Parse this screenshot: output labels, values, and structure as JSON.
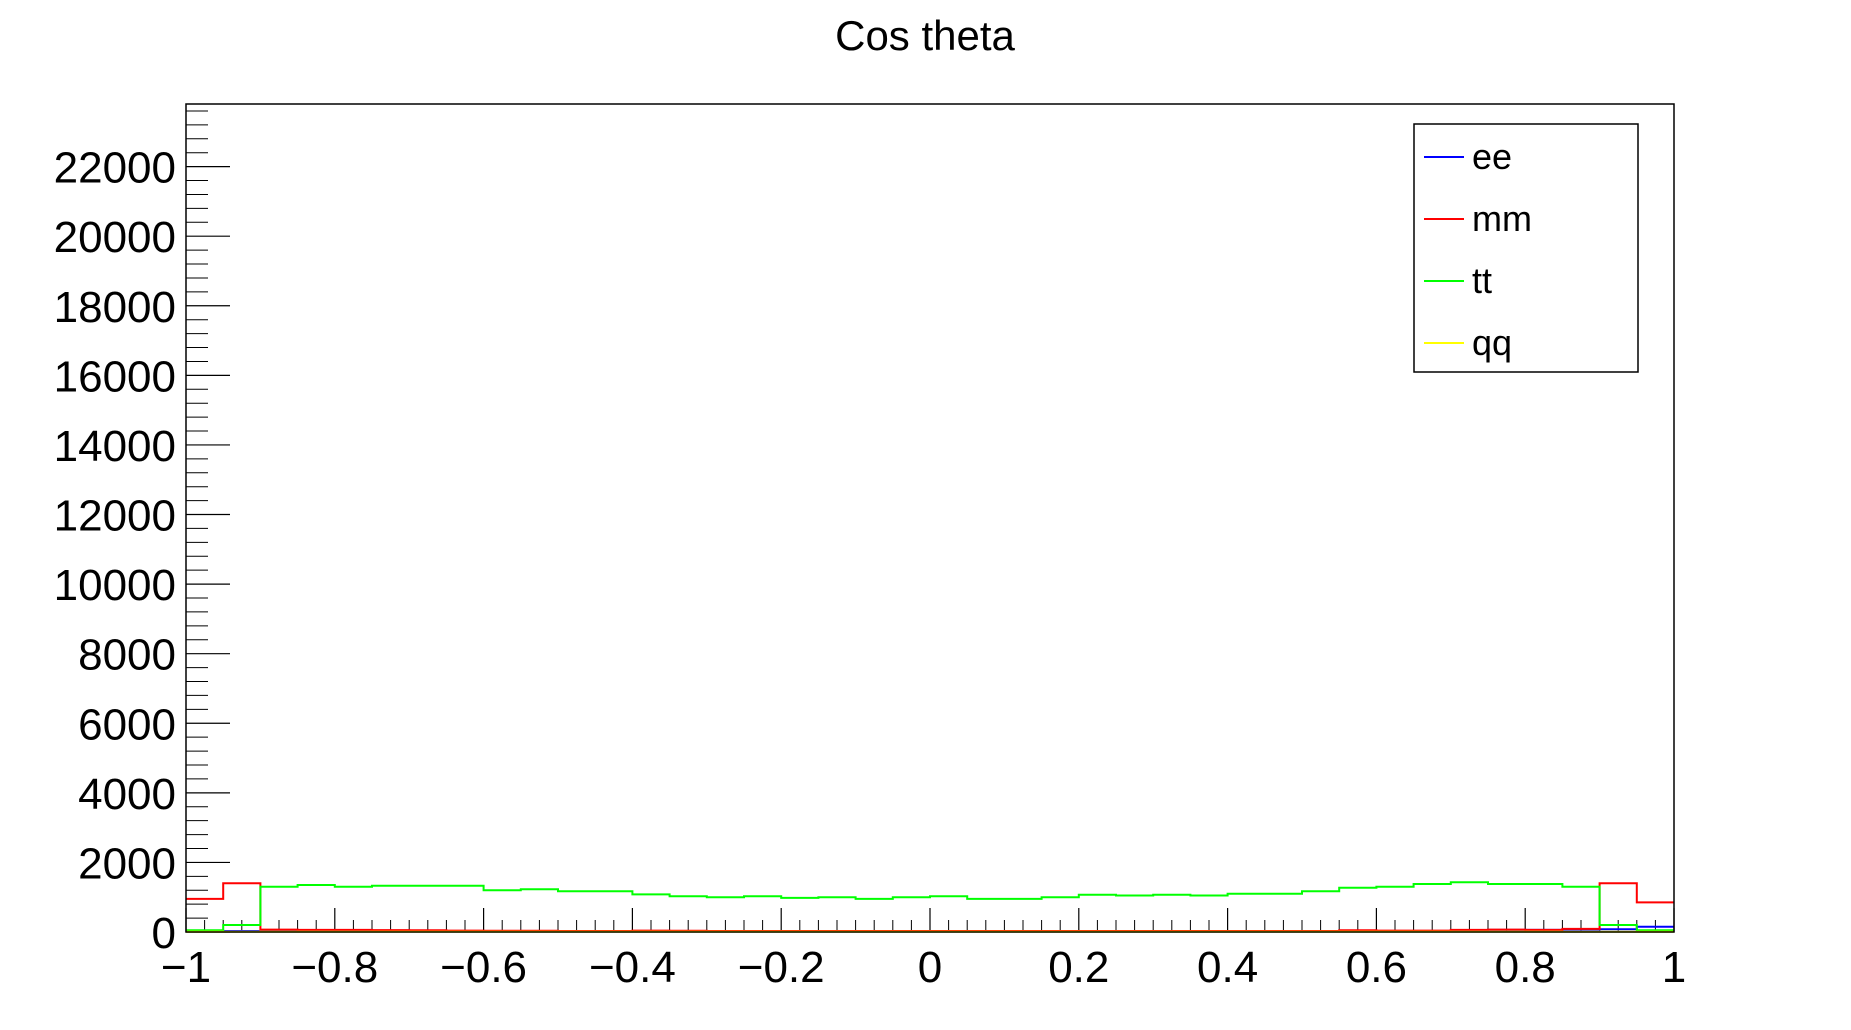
{
  "chart_data": {
    "type": "step-histogram",
    "title": "Cos theta",
    "xlabel": "",
    "ylabel": "",
    "xlim": [
      -1,
      1
    ],
    "ylim": [
      0,
      23800
    ],
    "grid": false,
    "legend_position": "top-right",
    "x_ticks": [
      {
        "value": -1,
        "label": "−1"
      },
      {
        "value": -0.8,
        "label": "−0.8"
      },
      {
        "value": -0.6,
        "label": "−0.6"
      },
      {
        "value": -0.4,
        "label": "−0.4"
      },
      {
        "value": -0.2,
        "label": "−0.2"
      },
      {
        "value": 0,
        "label": "0"
      },
      {
        "value": 0.2,
        "label": "0.2"
      },
      {
        "value": 0.4,
        "label": "0.4"
      },
      {
        "value": 0.6,
        "label": "0.6"
      },
      {
        "value": 0.8,
        "label": "0.8"
      },
      {
        "value": 1,
        "label": "1"
      }
    ],
    "y_ticks": [
      {
        "value": 0,
        "label": "0"
      },
      {
        "value": 2000,
        "label": "2000"
      },
      {
        "value": 4000,
        "label": "4000"
      },
      {
        "value": 6000,
        "label": "6000"
      },
      {
        "value": 8000,
        "label": "8000"
      },
      {
        "value": 10000,
        "label": "10000"
      },
      {
        "value": 12000,
        "label": "12000"
      },
      {
        "value": 14000,
        "label": "14000"
      },
      {
        "value": 16000,
        "label": "16000"
      },
      {
        "value": 18000,
        "label": "18000"
      },
      {
        "value": 20000,
        "label": "20000"
      },
      {
        "value": 22000,
        "label": "22000"
      }
    ],
    "bin_edges": [
      -1,
      -0.95,
      -0.9,
      -0.85,
      -0.8,
      -0.75,
      -0.7,
      -0.65,
      -0.6,
      -0.55,
      -0.5,
      -0.45,
      -0.4,
      -0.35,
      -0.3,
      -0.25,
      -0.2,
      -0.15,
      -0.1,
      -0.05,
      0,
      0.05,
      0.1,
      0.15,
      0.2,
      0.25,
      0.3,
      0.35,
      0.4,
      0.45,
      0.5,
      0.55,
      0.6,
      0.65,
      0.7,
      0.75,
      0.8,
      0.85,
      0.9,
      0.95,
      1
    ],
    "series": [
      {
        "name": "ee",
        "color": "#0000ff",
        "values": [
          40,
          30,
          25,
          20,
          20,
          20,
          20,
          20,
          20,
          20,
          20,
          20,
          20,
          20,
          20,
          20,
          20,
          20,
          20,
          20,
          20,
          20,
          20,
          20,
          20,
          20,
          20,
          20,
          20,
          20,
          20,
          20,
          25,
          30,
          40,
          60,
          60,
          70,
          80,
          150
        ]
      },
      {
        "name": "mm",
        "color": "#ff0000",
        "values": [
          950,
          1400,
          70,
          60,
          60,
          55,
          50,
          40,
          35,
          35,
          30,
          30,
          40,
          35,
          30,
          30,
          30,
          30,
          30,
          30,
          30,
          30,
          30,
          30,
          30,
          30,
          30,
          30,
          30,
          30,
          30,
          50,
          40,
          40,
          60,
          70,
          60,
          90,
          1400,
          850
        ]
      },
      {
        "name": "tt",
        "color": "#00ff00",
        "values": [
          50,
          200,
          1300,
          1350,
          1300,
          1330,
          1330,
          1330,
          1200,
          1230,
          1170,
          1170,
          1080,
          1030,
          1000,
          1030,
          980,
          1000,
          950,
          1000,
          1030,
          950,
          950,
          1000,
          1070,
          1050,
          1070,
          1050,
          1100,
          1100,
          1170,
          1270,
          1300,
          1380,
          1430,
          1380,
          1380,
          1300,
          200,
          50
        ]
      },
      {
        "name": "qq",
        "color": "#ffff00",
        "values": [
          5,
          5,
          5,
          5,
          5,
          5,
          5,
          5,
          5,
          5,
          5,
          5,
          5,
          5,
          5,
          5,
          5,
          5,
          5,
          5,
          5,
          5,
          5,
          5,
          5,
          5,
          5,
          5,
          5,
          5,
          5,
          5,
          5,
          5,
          5,
          5,
          5,
          5,
          5,
          5
        ]
      }
    ]
  }
}
